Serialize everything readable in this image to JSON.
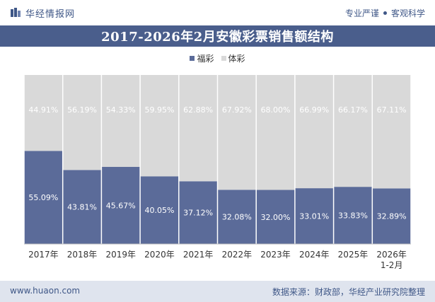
{
  "header": {
    "brand": "华经情报网",
    "slogan_left": "专业严谨",
    "slogan_right": "客观科学"
  },
  "footer": {
    "website": "www.huaon.com",
    "source": "数据来源：财政部，华经产业研究院整理"
  },
  "colors": {
    "welfare": "#5b6b99",
    "sports": "#d9d9d9",
    "title_bg": "#4a5e8c",
    "footer_bg": "#dfe4ee"
  },
  "chart_data": {
    "type": "bar",
    "stacked": true,
    "percent": true,
    "title": "2017-2026年2月安徽彩票销售额结构",
    "categories": [
      "2017年",
      "2018年",
      "2019年",
      "2020年",
      "2021年",
      "2022年",
      "2023年",
      "2024年",
      "2025年",
      "2026年\n1-2月"
    ],
    "series": [
      {
        "name": "福彩",
        "values": [
          55.09,
          43.81,
          45.67,
          40.05,
          37.12,
          32.08,
          32.0,
          33.01,
          33.83,
          32.89
        ],
        "labels": [
          "55.09%",
          "43.81%",
          "45.67%",
          "40.05%",
          "37.12%",
          "32.08%",
          "32.00%",
          "33.01%",
          "33.83%",
          "32.89%"
        ]
      },
      {
        "name": "体彩",
        "values": [
          44.91,
          56.19,
          54.33,
          59.95,
          62.88,
          67.92,
          68.0,
          66.99,
          66.17,
          67.11
        ],
        "labels": [
          "44.91%",
          "56.19%",
          "54.33%",
          "59.95%",
          "62.88%",
          "67.92%",
          "68.00%",
          "66.99%",
          "66.17%",
          "67.11%"
        ]
      }
    ],
    "ylim": [
      0,
      100
    ],
    "legend": "top-center"
  }
}
